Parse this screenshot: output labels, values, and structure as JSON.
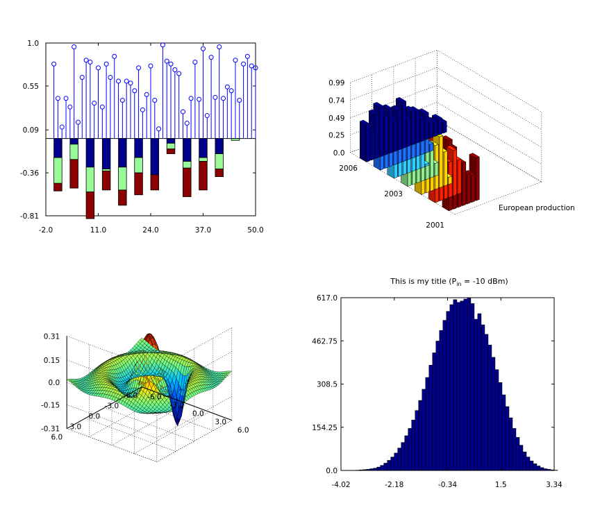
{
  "chart_data": [
    {
      "type": "stem+stacked-bar",
      "panel": "top-left",
      "xlim": [
        -2.0,
        50.0
      ],
      "ylim": [
        -0.81,
        1.0
      ],
      "xticks": [
        "-2.0",
        "11.0",
        "24.0",
        "37.0",
        "50.0"
      ],
      "yticks": [
        "-0.81",
        "-0.36",
        "0.09",
        "0.55",
        "1.0"
      ],
      "stem": {
        "color": "#0000ff",
        "x": [
          0,
          1,
          2,
          3,
          4,
          5,
          6,
          7,
          8,
          9,
          10,
          11,
          12,
          13,
          14,
          15,
          16,
          17,
          18,
          19,
          20,
          21,
          22,
          23,
          24,
          25,
          26,
          27,
          28,
          29,
          30,
          31,
          32,
          33,
          34,
          35,
          36,
          37,
          38,
          39,
          40,
          41,
          42,
          43,
          44,
          45,
          46,
          47,
          48,
          49,
          50
        ],
        "y": [
          0.78,
          0.42,
          0.12,
          0.42,
          0.33,
          0.96,
          0.17,
          0.64,
          0.82,
          0.8,
          0.37,
          0.74,
          0.33,
          0.78,
          0.64,
          0.86,
          0.6,
          0.4,
          0.6,
          0.58,
          0.5,
          0.74,
          0.3,
          0.46,
          0.76,
          0.4,
          0.1,
          0.98,
          0.81,
          0.78,
          0.72,
          0.68,
          0.28,
          0.16,
          0.42,
          0.8,
          0.41,
          0.94,
          0.24,
          0.85,
          0.43,
          0.96,
          0.42,
          0.54,
          0.5,
          0.82,
          0.4,
          0.78,
          0.86,
          0.76,
          0.74
        ]
      },
      "bars": {
        "x": [
          0,
          4,
          8,
          12,
          16,
          20,
          24,
          28,
          32,
          36,
          40,
          44
        ],
        "series": [
          {
            "color": "#00008b",
            "values": [
              -0.2,
              -0.06,
              -0.3,
              -0.32,
              -0.3,
              -0.2,
              -0.38,
              -0.05,
              -0.24,
              -0.2,
              -0.16,
              0
            ]
          },
          {
            "color": "#98fb98",
            "values": [
              -0.27,
              -0.16,
              -0.26,
              -0.02,
              -0.24,
              -0.16,
              0,
              -0.06,
              -0.07,
              -0.04,
              -0.16,
              -0.02
            ]
          },
          {
            "color": "#8b0000",
            "values": [
              -0.08,
              -0.3,
              -0.28,
              -0.2,
              -0.16,
              -0.23,
              -0.16,
              -0.05,
              -0.3,
              -0.3,
              -0.08,
              0
            ]
          }
        ]
      }
    },
    {
      "type": "bar3d",
      "panel": "top-right",
      "zticks": [
        "0.0",
        "0.25",
        "0.49",
        "0.74",
        "0.99"
      ],
      "yticks": [
        "2001",
        "2003",
        "2006"
      ],
      "xlabel": "European production",
      "rows": [
        {
          "color": "#00008b",
          "values": [
            0.52,
            0.4,
            0.62,
            0.7,
            0.55,
            0.62,
            0.45,
            0.56,
            0.65,
            0.4,
            0.48,
            0.45,
            0.32,
            0.37,
            0.25,
            0.2,
            0.22,
            0.15
          ]
        },
        {
          "color": "#1e6fff",
          "values": [
            0.3,
            0.42,
            0.62,
            0.52,
            0.35,
            0.48,
            0.28,
            0.4,
            0.3,
            0.25,
            0.45,
            0.1
          ]
        },
        {
          "color": "#33ccff",
          "values": [
            0.45,
            0.7,
            0.52,
            0.55,
            0.38,
            0.65,
            0.52,
            0.03
          ]
        },
        {
          "color": "#90ee90",
          "values": [
            0.88,
            0.68,
            0.55,
            0.48,
            0.62,
            0.48,
            0.18
          ]
        },
        {
          "color": "#ffd000",
          "values": [
            0.98,
            0.72,
            0.55,
            0.62,
            0.72,
            0.48,
            0.1
          ]
        },
        {
          "color": "#ff2000",
          "values": [
            0.98,
            0.74,
            0.6,
            0.5,
            0.64,
            0.48
          ]
        },
        {
          "color": "#8b0000",
          "values": [
            0.99,
            0.86,
            0.55,
            0.6,
            0.42,
            0.38,
            0.6
          ]
        }
      ]
    },
    {
      "type": "surface",
      "panel": "bottom-left",
      "function": "sinc(sqrt(x^2+y^2)) with dip",
      "zticks": [
        "-0.31",
        "-0.15",
        "0.0",
        "0.15",
        "0.31"
      ],
      "xticks": [
        "-6.0",
        "-3.0",
        "0.0",
        "3.0",
        "6.0"
      ],
      "yticks": [
        "-6.0",
        "-3.0",
        "0.0",
        "3.0",
        "6.0"
      ]
    },
    {
      "type": "histogram",
      "panel": "bottom-right",
      "title_main": "This is my title (P",
      "title_sub": "in",
      "title_tail": " = -10 dBm)",
      "xlim": [
        -4.02,
        3.34
      ],
      "ylim": [
        0.0,
        617.0
      ],
      "xticks": [
        "-4.02",
        "-2.18",
        "-0.34",
        "1.5",
        "3.34"
      ],
      "yticks": [
        "0.0",
        "154.25",
        "308.5",
        "462.75",
        "617.0"
      ],
      "bar_color": "#00008b",
      "bins_start": -3.5,
      "bin_width": 0.12,
      "counts": [
        1,
        2,
        3,
        4,
        6,
        8,
        12,
        18,
        26,
        36,
        48,
        62,
        80,
        100,
        124,
        150,
        180,
        214,
        250,
        290,
        332,
        376,
        420,
        462,
        500,
        536,
        568,
        592,
        610,
        600,
        605,
        612,
        617,
        596,
        540,
        560,
        520,
        486,
        448,
        404,
        360,
        314,
        270,
        228,
        188,
        150,
        118,
        90,
        66,
        48,
        34,
        24,
        16,
        10,
        6,
        4,
        2,
        1
      ]
    }
  ]
}
